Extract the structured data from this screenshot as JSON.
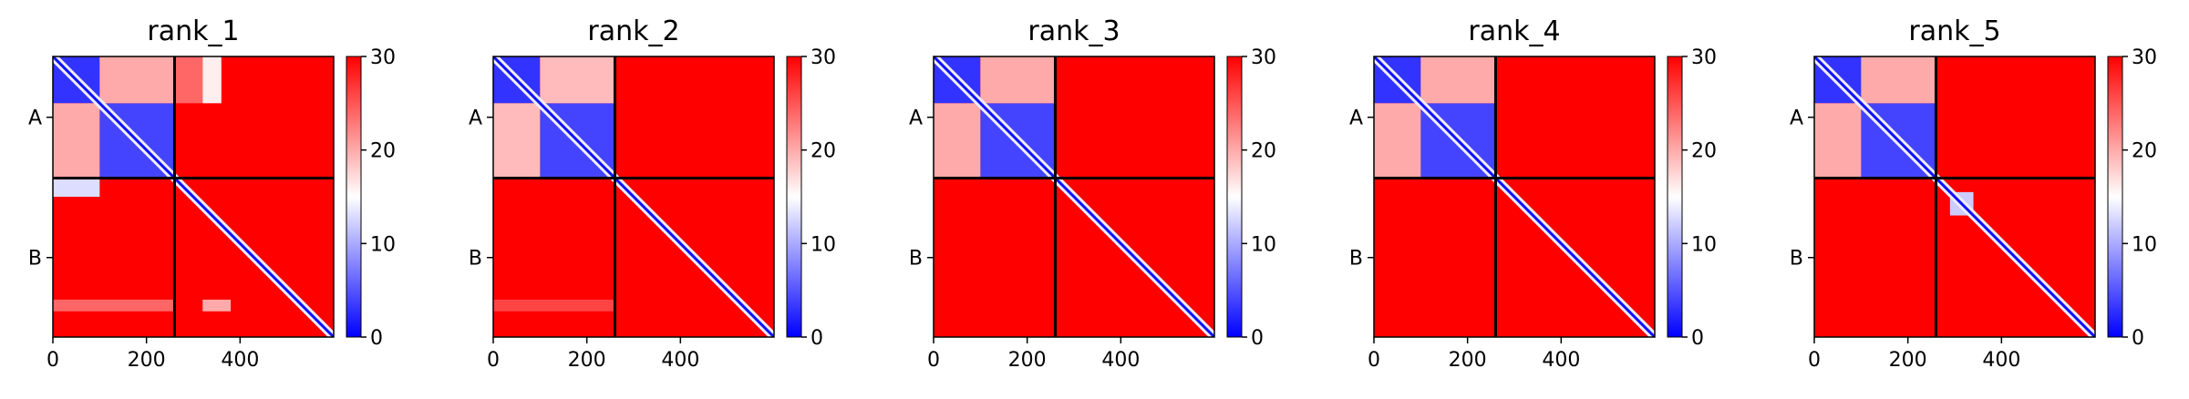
{
  "chart_data": [
    {
      "type": "heatmap",
      "title": "rank_1",
      "xlabel": "",
      "ylabel": "",
      "x_ticks": [
        0,
        200,
        400
      ],
      "xlim": [
        0,
        600
      ],
      "chain_boundary": 260,
      "y_categories": [
        "A",
        "B"
      ],
      "colorbar": {
        "ticks": [
          0,
          10,
          20,
          30
        ],
        "range": [
          0,
          30
        ],
        "colormap": "bwr"
      },
      "blocks": [
        {
          "rows": "A",
          "cols": "A",
          "region": [
            0,
            100,
            0,
            100
          ],
          "level": 3
        },
        {
          "rows": "A",
          "cols": "A",
          "region": [
            100,
            260,
            100,
            260
          ],
          "level": 4
        },
        {
          "rows": "A",
          "cols": "A",
          "region": [
            0,
            100,
            100,
            260
          ],
          "level": 20
        },
        {
          "rows": "A",
          "cols": "A",
          "region": [
            100,
            260,
            0,
            100
          ],
          "level": 20
        },
        {
          "rows": "A",
          "cols": "B",
          "region": [
            0,
            100,
            260,
            320
          ],
          "level": 24
        },
        {
          "rows": "A",
          "cols": "B",
          "region": [
            0,
            100,
            320,
            360
          ],
          "level": 16
        },
        {
          "rows": "B",
          "cols": "A",
          "region": [
            260,
            300,
            0,
            100
          ],
          "level": 13
        },
        {
          "rows": "B",
          "cols": "A",
          "region": [
            520,
            545,
            0,
            260
          ],
          "level": 24
        },
        {
          "rows": "B",
          "cols": "B",
          "region": [
            520,
            545,
            320,
            380
          ],
          "level": 20
        }
      ]
    },
    {
      "type": "heatmap",
      "title": "rank_2",
      "xlabel": "",
      "ylabel": "",
      "x_ticks": [
        0,
        200,
        400
      ],
      "xlim": [
        0,
        600
      ],
      "chain_boundary": 260,
      "y_categories": [
        "A",
        "B"
      ],
      "colorbar": {
        "ticks": [
          0,
          10,
          20,
          30
        ],
        "range": [
          0,
          30
        ],
        "colormap": "bwr"
      },
      "blocks": [
        {
          "rows": "A",
          "cols": "A",
          "region": [
            0,
            100,
            0,
            100
          ],
          "level": 3
        },
        {
          "rows": "A",
          "cols": "A",
          "region": [
            100,
            260,
            100,
            260
          ],
          "level": 4
        },
        {
          "rows": "A",
          "cols": "A",
          "region": [
            0,
            100,
            100,
            260
          ],
          "level": 19
        },
        {
          "rows": "A",
          "cols": "A",
          "region": [
            100,
            260,
            0,
            100
          ],
          "level": 19
        },
        {
          "rows": "B",
          "cols": "A",
          "region": [
            520,
            545,
            0,
            260
          ],
          "level": 26
        }
      ]
    },
    {
      "type": "heatmap",
      "title": "rank_3",
      "xlabel": "",
      "ylabel": "",
      "x_ticks": [
        0,
        200,
        400
      ],
      "xlim": [
        0,
        600
      ],
      "chain_boundary": 260,
      "y_categories": [
        "A",
        "B"
      ],
      "colorbar": {
        "ticks": [
          0,
          10,
          20,
          30
        ],
        "range": [
          0,
          30
        ],
        "colormap": "bwr"
      },
      "blocks": [
        {
          "rows": "A",
          "cols": "A",
          "region": [
            0,
            100,
            0,
            100
          ],
          "level": 3
        },
        {
          "rows": "A",
          "cols": "A",
          "region": [
            100,
            260,
            100,
            260
          ],
          "level": 4
        },
        {
          "rows": "A",
          "cols": "A",
          "region": [
            0,
            100,
            100,
            260
          ],
          "level": 20
        },
        {
          "rows": "A",
          "cols": "A",
          "region": [
            100,
            260,
            0,
            100
          ],
          "level": 20
        }
      ]
    },
    {
      "type": "heatmap",
      "title": "rank_4",
      "xlabel": "",
      "ylabel": "",
      "x_ticks": [
        0,
        200,
        400
      ],
      "xlim": [
        0,
        600
      ],
      "chain_boundary": 260,
      "y_categories": [
        "A",
        "B"
      ],
      "colorbar": {
        "ticks": [
          0,
          10,
          20,
          30
        ],
        "range": [
          0,
          30
        ],
        "colormap": "bwr"
      },
      "blocks": [
        {
          "rows": "A",
          "cols": "A",
          "region": [
            0,
            100,
            0,
            100
          ],
          "level": 3
        },
        {
          "rows": "A",
          "cols": "A",
          "region": [
            100,
            260,
            100,
            260
          ],
          "level": 4
        },
        {
          "rows": "A",
          "cols": "A",
          "region": [
            0,
            100,
            100,
            260
          ],
          "level": 20
        },
        {
          "rows": "A",
          "cols": "A",
          "region": [
            100,
            260,
            0,
            100
          ],
          "level": 20
        }
      ]
    },
    {
      "type": "heatmap",
      "title": "rank_5",
      "xlabel": "",
      "ylabel": "",
      "x_ticks": [
        0,
        200,
        400
      ],
      "xlim": [
        0,
        600
      ],
      "chain_boundary": 260,
      "y_categories": [
        "A",
        "B"
      ],
      "colorbar": {
        "ticks": [
          0,
          10,
          20,
          30
        ],
        "range": [
          0,
          30
        ],
        "colormap": "bwr"
      },
      "blocks": [
        {
          "rows": "A",
          "cols": "A",
          "region": [
            0,
            100,
            0,
            100
          ],
          "level": 3
        },
        {
          "rows": "A",
          "cols": "A",
          "region": [
            100,
            260,
            100,
            260
          ],
          "level": 4
        },
        {
          "rows": "A",
          "cols": "A",
          "region": [
            0,
            100,
            100,
            260
          ],
          "level": 20
        },
        {
          "rows": "A",
          "cols": "A",
          "region": [
            100,
            260,
            0,
            100
          ],
          "level": 20
        },
        {
          "rows": "B",
          "cols": "B",
          "region": [
            290,
            340,
            290,
            340
          ],
          "level": 12
        }
      ]
    }
  ],
  "colors": {
    "low": "#0000ff",
    "mid": "#ffffff",
    "high": "#ff0000"
  }
}
